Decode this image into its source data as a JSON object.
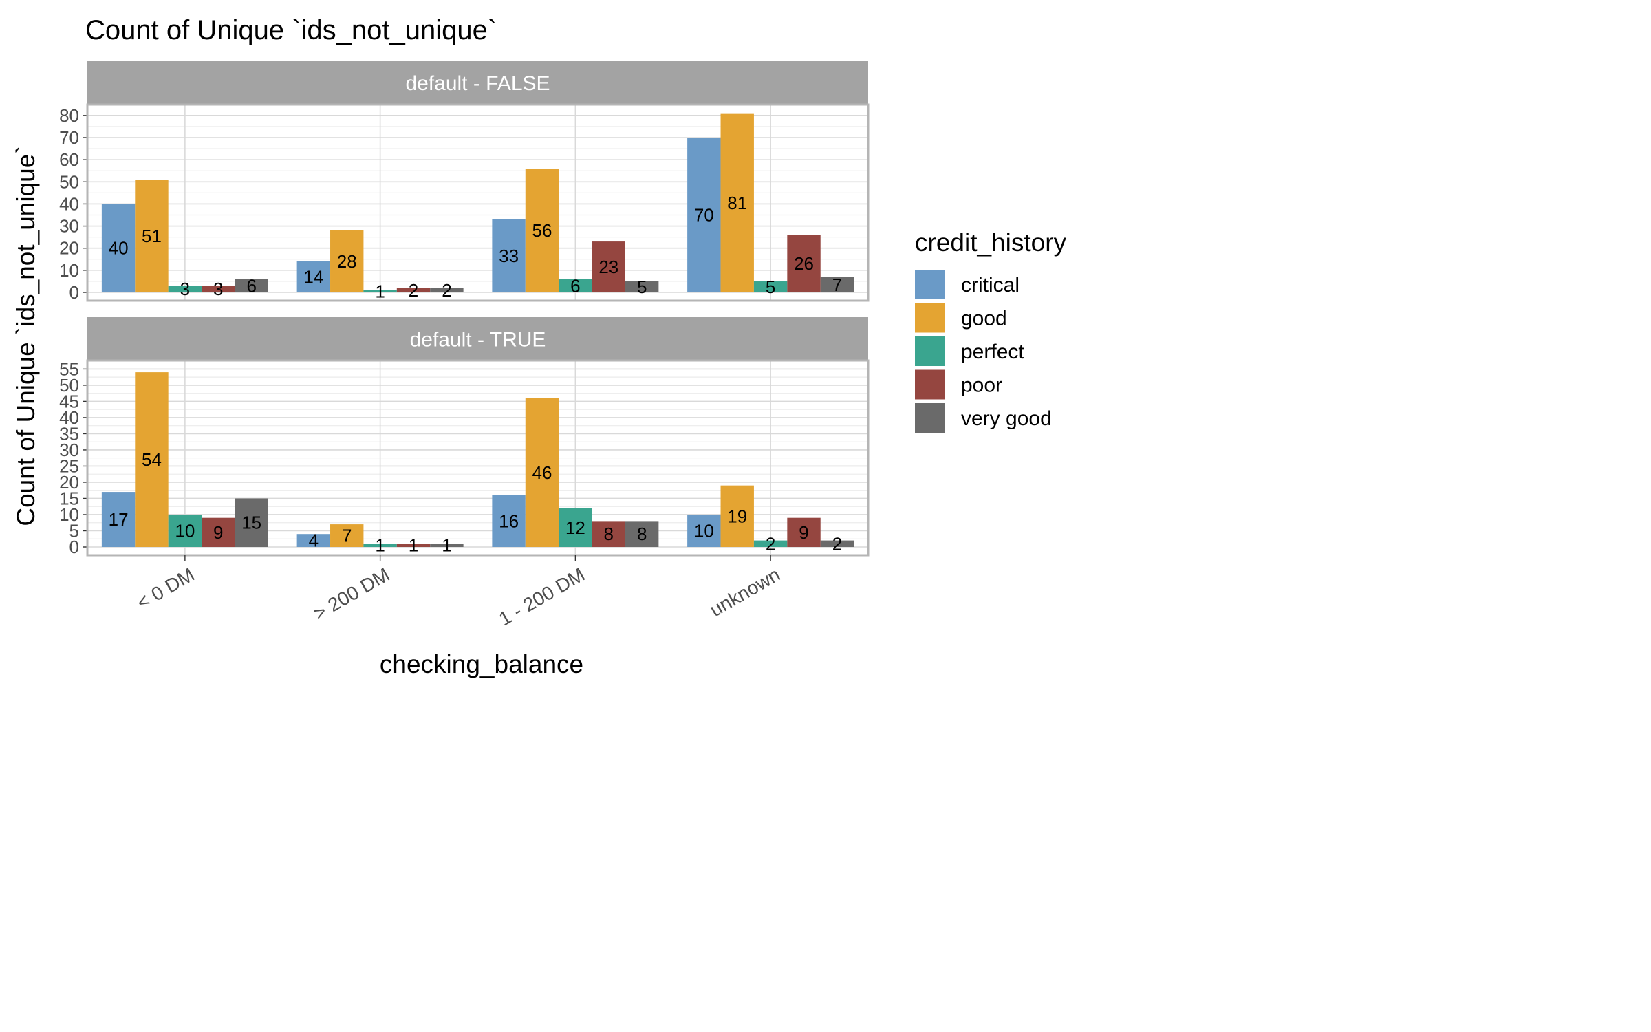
{
  "chart_data": {
    "type": "bar",
    "title": "Count of Unique `ids_not_unique`",
    "xlabel": "checking_balance",
    "ylabel": "Count of Unique `ids_not_unique`",
    "categories": [
      "< 0 DM",
      "> 200 DM",
      "1 - 200 DM",
      "unknown"
    ],
    "legend": {
      "title": "credit_history",
      "position": "right",
      "entries": [
        "critical",
        "good",
        "perfect",
        "poor",
        "very good"
      ]
    },
    "series_colors": {
      "critical": "#6A9AC7",
      "good": "#E4A432",
      "perfect": "#3AA58F",
      "poor": "#954640",
      "very good": "#6A6A6A"
    },
    "grid": true,
    "panels": [
      {
        "strip_label": "default - FALSE",
        "ylim": [
          0,
          84
        ],
        "yticks": [
          0,
          10,
          20,
          30,
          40,
          50,
          60,
          70,
          80
        ],
        "series": [
          {
            "name": "critical",
            "values": [
              40,
              14,
              33,
              70
            ]
          },
          {
            "name": "good",
            "values": [
              51,
              28,
              56,
              81
            ]
          },
          {
            "name": "perfect",
            "values": [
              3,
              1,
              6,
              5
            ]
          },
          {
            "name": "poor",
            "values": [
              3,
              2,
              23,
              26
            ]
          },
          {
            "name": "very good",
            "values": [
              6,
              2,
              5,
              7
            ]
          }
        ]
      },
      {
        "strip_label": "default - TRUE",
        "ylim": [
          0,
          57
        ],
        "yticks": [
          0,
          5,
          10,
          15,
          20,
          25,
          30,
          35,
          40,
          45,
          50,
          55
        ],
        "series": [
          {
            "name": "critical",
            "values": [
              17,
              4,
              16,
              10
            ]
          },
          {
            "name": "good",
            "values": [
              54,
              7,
              46,
              19
            ]
          },
          {
            "name": "perfect",
            "values": [
              10,
              1,
              12,
              2
            ]
          },
          {
            "name": "poor",
            "values": [
              9,
              1,
              8,
              9
            ]
          },
          {
            "name": "very good",
            "values": [
              15,
              1,
              8,
              2
            ]
          }
        ]
      }
    ]
  }
}
